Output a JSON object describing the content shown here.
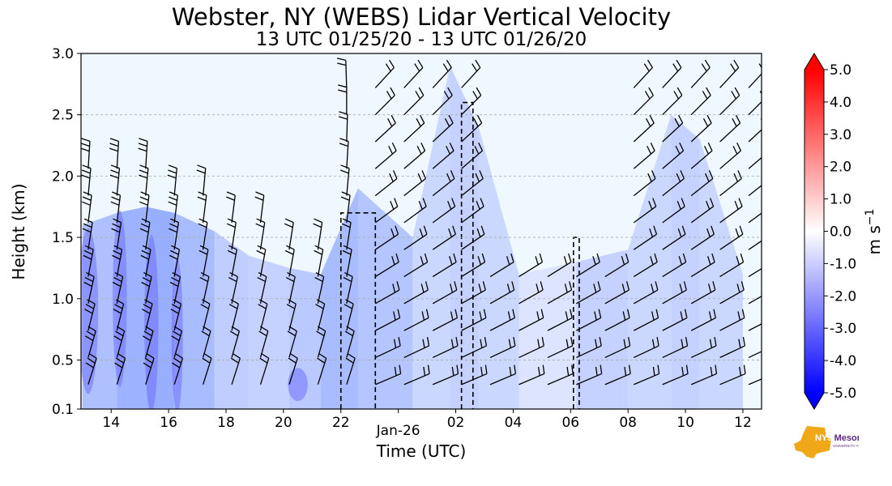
{
  "chart_data": {
    "type": "heatmap",
    "title": "Webster, NY (WEBS) Lidar Vertical Velocity",
    "subtitle": "13 UTC 01/25/20 - 13 UTC 01/26/20",
    "xlabel": "Time (UTC)",
    "ylabel": "Height (km)",
    "x_ticks": [
      "14",
      "16",
      "18",
      "20",
      "22",
      "Jan-26",
      "02",
      "04",
      "06",
      "08",
      "10",
      "12"
    ],
    "x_tick_hours": [
      1,
      3,
      5,
      7,
      9,
      11,
      13,
      15,
      17,
      19,
      21,
      23
    ],
    "xlim_hours": [
      -0.05,
      23.65
    ],
    "y_ticks": [
      "0.1",
      "0.5",
      "1.0",
      "1.5",
      "2.0",
      "2.5",
      "3.0"
    ],
    "y_tick_values": [
      0.1,
      0.5,
      1.0,
      1.5,
      2.0,
      2.5,
      3.0
    ],
    "ylim": [
      0.1,
      3.0
    ],
    "grid": "dashed horizontal",
    "colorbar": {
      "label": "m s",
      "label_exponent": "−1",
      "ticks": [
        "5.0",
        "4.0",
        "3.0",
        "2.0",
        "1.0",
        "0.0",
        "-1.0",
        "-2.0",
        "-3.0",
        "-4.0",
        "-5.0"
      ],
      "tick_values": [
        5,
        4,
        3,
        2,
        1,
        0,
        -1,
        -2,
        -3,
        -4,
        -5
      ],
      "range": [
        -5,
        5
      ],
      "colors": [
        "#0000ff",
        "#ffffff",
        "#ff0000"
      ],
      "extend": "both"
    },
    "background_color": "#f0f8ff"
  },
  "logo": {
    "text": "NYS Mesonet",
    "subtext": "UNIVERSITY AT ALBANY",
    "colors": [
      "#f0a818",
      "#5a2a82"
    ]
  }
}
